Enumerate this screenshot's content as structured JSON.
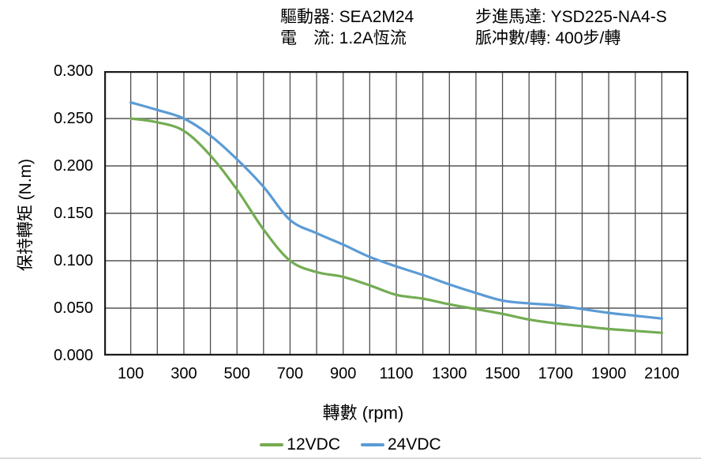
{
  "header": {
    "col1": {
      "line1": "驅動器: SEA2M24",
      "line2": "電　流: 1.2A恆流"
    },
    "col2": {
      "line1": "步進馬達: YSD225-NA4-S",
      "line2": "脈冲數/轉: 400步/轉"
    }
  },
  "chart_data": {
    "type": "line",
    "xlabel": "轉數 (rpm)",
    "ylabel": "保持轉矩 (N.m)",
    "x": [
      100,
      200,
      300,
      400,
      500,
      600,
      700,
      800,
      900,
      1000,
      1100,
      1200,
      1300,
      1400,
      1500,
      1600,
      1700,
      1800,
      1900,
      2000,
      2100
    ],
    "series": [
      {
        "name": "12VDC",
        "color": "#73AC52",
        "values": [
          0.25,
          0.246,
          0.237,
          0.211,
          0.175,
          0.133,
          0.1,
          0.088,
          0.083,
          0.074,
          0.064,
          0.06,
          0.054,
          0.049,
          0.044,
          0.038,
          0.034,
          0.031,
          0.028,
          0.026,
          0.024
        ]
      },
      {
        "name": "24VDC",
        "color": "#5B9BD5",
        "values": [
          0.267,
          0.259,
          0.25,
          0.232,
          0.207,
          0.178,
          0.143,
          0.129,
          0.117,
          0.104,
          0.094,
          0.085,
          0.075,
          0.066,
          0.058,
          0.055,
          0.053,
          0.049,
          0.045,
          0.042,
          0.039
        ]
      }
    ],
    "xlim": [
      0,
      2200
    ],
    "ylim": [
      0,
      0.3
    ],
    "x_gridline_step": 100,
    "y_gridline_step": 0.05,
    "x_tick_labels": [
      "100",
      "300",
      "500",
      "700",
      "900",
      "1100",
      "1300",
      "1500",
      "1700",
      "1900",
      "2100"
    ],
    "x_tick_values": [
      100,
      300,
      500,
      700,
      900,
      1100,
      1300,
      1500,
      1700,
      1900,
      2100
    ],
    "y_tick_labels": [
      "0.300",
      "0.250",
      "0.200",
      "0.150",
      "0.100",
      "0.050",
      "0.000"
    ],
    "grid": true,
    "legend_position": "bottom"
  },
  "colors": {
    "grid_horizontal": "#7f7f7f",
    "grid_vertical": "#4d4d4d",
    "plot_border": "#1a1a1a",
    "series_12vdc": "#73AC52",
    "series_24vdc": "#5B9BD5"
  }
}
